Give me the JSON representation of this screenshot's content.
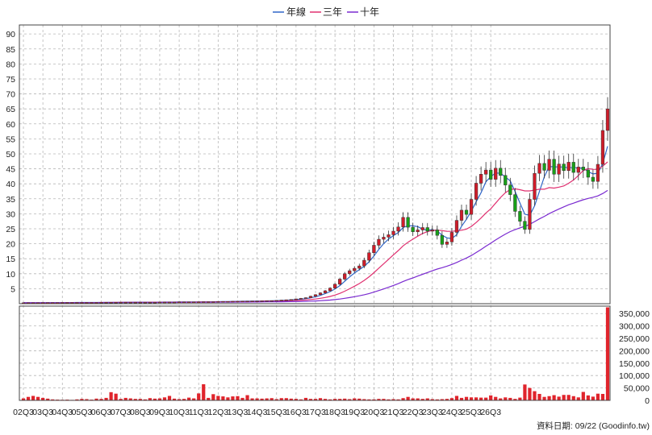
{
  "colors": {
    "up": "#d01c2a",
    "down": "#18a018",
    "ma_year": "#2f66c8",
    "ma_3y": "#e03070",
    "ma_10y": "#7a2ad0",
    "volume": "#e0242c",
    "grid": "#b8b8b8"
  },
  "chart_data": {
    "type": "candlestick",
    "legend": [
      "年線",
      "三年",
      "十年"
    ],
    "legend_position": "top-center",
    "grid": true,
    "price_axis": {
      "ticks": [
        5,
        10,
        15,
        20,
        25,
        30,
        35,
        40,
        45,
        50,
        55,
        60,
        65,
        70,
        75,
        80,
        85,
        90
      ],
      "ylim": [
        0,
        93
      ]
    },
    "volume_axis": {
      "ticks": [
        "0",
        "50,000",
        "100,000",
        "150,000",
        "200,000",
        "250,000",
        "300,000",
        "350,000"
      ],
      "ylim": [
        0,
        380000
      ]
    },
    "x_tick_labels": [
      "02Q3",
      "03Q3",
      "04Q3",
      "05Q3",
      "06Q3",
      "07Q3",
      "08Q3",
      "09Q3",
      "10Q3",
      "11Q3",
      "12Q3",
      "13Q3",
      "14Q3",
      "15Q3",
      "16Q3",
      "17Q3",
      "18Q3",
      "19Q3",
      "20Q3",
      "21Q3",
      "22Q3",
      "23Q3",
      "24Q3",
      "25Q3",
      "26Q3"
    ],
    "footer": "資料日期: 09/22 (Goodinfo.tw)",
    "quarters_from": "2002Q3",
    "close": [
      0.3,
      0.3,
      0.3,
      0.3,
      0.35,
      0.35,
      0.35,
      0.35,
      0.4,
      0.4,
      0.4,
      0.4,
      0.4,
      0.4,
      0.4,
      0.4,
      0.45,
      0.45,
      0.45,
      0.45,
      0.5,
      0.5,
      0.5,
      0.5,
      0.5,
      0.5,
      0.5,
      0.5,
      0.55,
      0.55,
      0.55,
      0.55,
      0.6,
      0.6,
      0.6,
      0.6,
      0.6,
      0.65,
      0.65,
      0.65,
      0.7,
      0.75,
      0.75,
      0.8,
      0.8,
      0.85,
      0.85,
      0.9,
      0.9,
      0.95,
      1.0,
      1.0,
      1.1,
      1.2,
      1.3,
      1.4,
      1.6,
      1.8,
      2.0,
      2.5,
      3.0,
      3.6,
      4.3,
      5.2,
      6.5,
      8.2,
      10.0,
      11.0,
      11.8,
      12.6,
      14.5,
      17.0,
      19.5,
      21.5,
      22.2,
      23.0,
      24.2,
      25.6,
      28.8,
      25.5,
      24.0,
      24.6,
      25.4,
      24.2,
      24.6,
      22.8,
      19.8,
      20.6,
      23.8,
      27.8,
      31.2,
      29.8,
      34.8,
      40.2,
      43.2,
      44.6,
      41.5,
      45.2,
      42.8,
      39.6,
      36.4,
      30.8,
      27.5,
      24.8,
      34.8,
      43.5,
      46.8,
      44.5,
      48.2,
      43.2,
      46.6,
      44.4,
      47.2,
      43.8,
      45.6,
      44.6,
      42.2,
      40.8,
      46.5,
      57.8,
      65.0
    ],
    "volume": [
      8000,
      14000,
      18000,
      14000,
      10000,
      7000,
      4000,
      3000,
      2500,
      3000,
      2000,
      4000,
      6000,
      5000,
      3000,
      7000,
      6000,
      10000,
      33000,
      27000,
      6000,
      10000,
      8000,
      6000,
      6000,
      4000,
      9000,
      7000,
      8000,
      12000,
      18000,
      7000,
      5000,
      6000,
      11000,
      8000,
      28000,
      65000,
      10000,
      25000,
      18000,
      16000,
      12000,
      16000,
      17000,
      10000,
      21000,
      8000,
      8000,
      7000,
      8000,
      9000,
      5000,
      9000,
      9000,
      7000,
      6000,
      4000,
      10000,
      6000,
      6000,
      9000,
      6000,
      4000,
      6000,
      6000,
      7000,
      5000,
      8000,
      7000,
      5000,
      4000,
      4000,
      6000,
      6000,
      4000,
      5000,
      4000,
      9000,
      14000,
      8000,
      8000,
      6000,
      8000,
      5000,
      4000,
      5000,
      6000,
      9000,
      18000,
      10000,
      14000,
      12000,
      12000,
      11000,
      11000,
      20000,
      14000,
      8000,
      12000,
      10000,
      6000,
      11000,
      64000,
      50000,
      37000,
      26000,
      14000,
      17000,
      21000,
      15000,
      22000,
      22000,
      17000,
      12000,
      34000,
      20000,
      15000,
      27000,
      26000,
      375000
    ]
  }
}
